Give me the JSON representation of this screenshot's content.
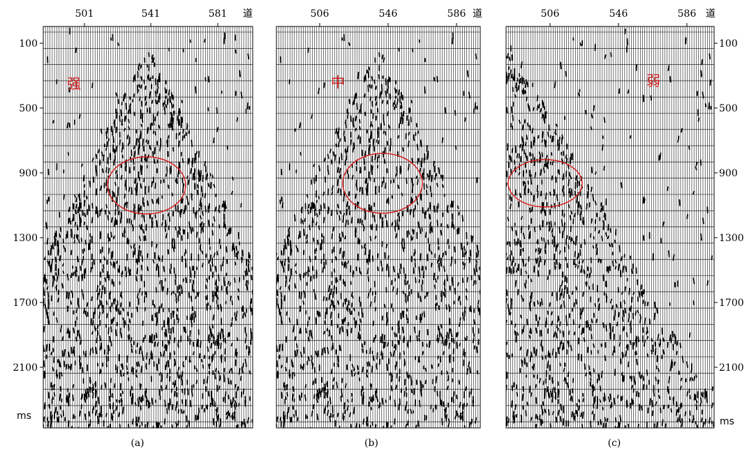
{
  "figure": {
    "panels": [
      {
        "id": "a",
        "caption": "(a)",
        "annotation": "强",
        "trace_labels": [
          "501",
          "541",
          "581"
        ],
        "trace_axis_label": "道",
        "time_labels": [
          "100",
          "500",
          "900",
          "1300",
          "1700",
          "2100"
        ],
        "time_unit": "ms",
        "time_axis_side": "left"
      },
      {
        "id": "b",
        "caption": "(b)",
        "annotation": "中",
        "trace_labels": [
          "506",
          "546",
          "586"
        ],
        "trace_axis_label": "道",
        "time_labels": [],
        "time_unit": "",
        "time_axis_side": "none"
      },
      {
        "id": "c",
        "caption": "(c)",
        "annotation": "弱",
        "trace_labels": [
          "506",
          "546",
          "586"
        ],
        "trace_axis_label": "道",
        "time_labels": [
          "100",
          "500",
          "900",
          "1300",
          "1700",
          "2100"
        ],
        "time_unit": "ms",
        "time_axis_side": "right"
      }
    ],
    "colors": {
      "trace": "#000000",
      "background": "#ffffff",
      "highlight": "#d32020"
    }
  }
}
